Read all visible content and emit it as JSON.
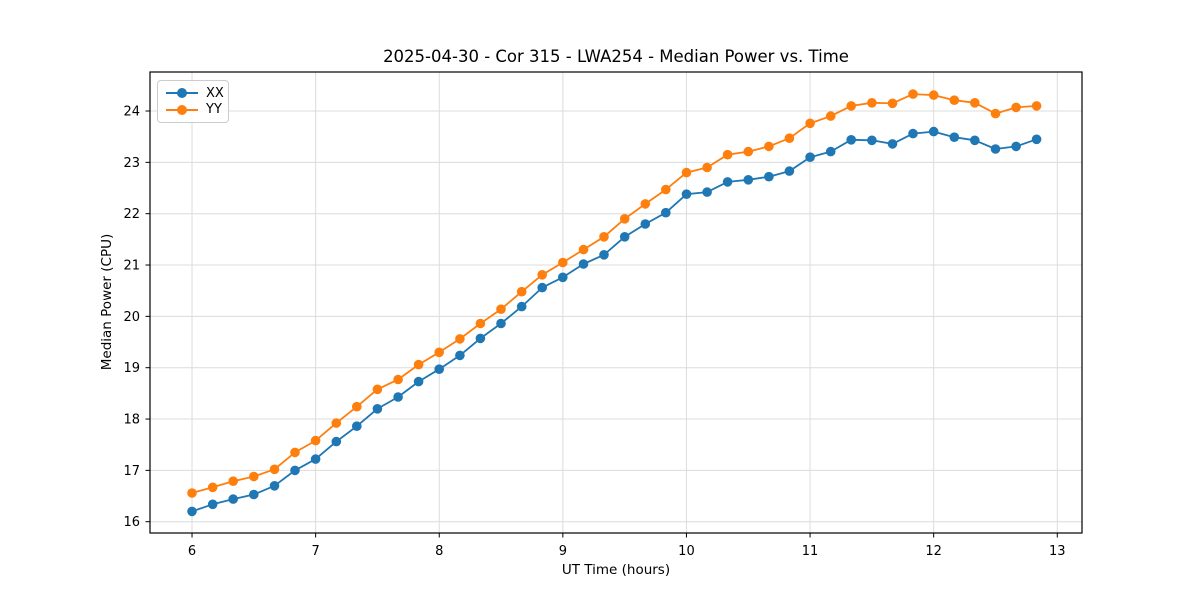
{
  "chart_data": {
    "type": "line",
    "title": "2025-04-30 - Cor 315 - LWA254 - Median Power vs. Time",
    "xlabel": "UT Time (hours)",
    "ylabel": "Median Power (CPU)",
    "xlim": [
      5.66,
      13.2
    ],
    "ylim": [
      15.78,
      24.76
    ],
    "xticks": [
      6,
      7,
      8,
      9,
      10,
      11,
      12,
      13
    ],
    "yticks": [
      16,
      17,
      18,
      19,
      20,
      21,
      22,
      23,
      24
    ],
    "grid": true,
    "grid_color": "#dcdcdc",
    "axes_color": "#000000",
    "background_color": "#ffffff",
    "legend_position": "upper left",
    "marker": "o",
    "x": [
      6.0,
      6.167,
      6.333,
      6.5,
      6.667,
      6.833,
      7.0,
      7.167,
      7.333,
      7.5,
      7.667,
      7.833,
      8.0,
      8.167,
      8.333,
      8.5,
      8.667,
      8.833,
      9.0,
      9.167,
      9.333,
      9.5,
      9.667,
      9.833,
      10.0,
      10.167,
      10.333,
      10.5,
      10.667,
      10.833,
      11.0,
      11.167,
      11.333,
      11.5,
      11.667,
      11.833,
      12.0,
      12.167,
      12.333,
      12.5,
      12.667,
      12.833
    ],
    "series": [
      {
        "name": "XX",
        "color": "#1f77b4",
        "values": [
          16.2,
          16.34,
          16.44,
          16.53,
          16.7,
          17.0,
          17.22,
          17.56,
          17.86,
          18.2,
          18.43,
          18.73,
          18.97,
          19.24,
          19.57,
          19.86,
          20.19,
          20.56,
          20.76,
          21.02,
          21.2,
          21.55,
          21.8,
          22.02,
          22.38,
          22.42,
          22.62,
          22.66,
          22.72,
          22.83,
          23.1,
          23.21,
          23.44,
          23.43,
          23.36,
          23.56,
          23.6,
          23.49,
          23.43,
          23.26,
          23.31,
          23.45
        ]
      },
      {
        "name": "YY",
        "color": "#ff7f0e",
        "values": [
          16.56,
          16.67,
          16.79,
          16.88,
          17.02,
          17.35,
          17.58,
          17.92,
          18.24,
          18.58,
          18.77,
          19.06,
          19.3,
          19.56,
          19.86,
          20.14,
          20.48,
          20.81,
          21.05,
          21.3,
          21.55,
          21.9,
          22.19,
          22.47,
          22.8,
          22.9,
          23.15,
          23.21,
          23.31,
          23.47,
          23.76,
          23.9,
          24.1,
          24.16,
          24.15,
          24.33,
          24.31,
          24.21,
          24.16,
          23.95,
          24.07,
          24.1
        ]
      }
    ]
  }
}
